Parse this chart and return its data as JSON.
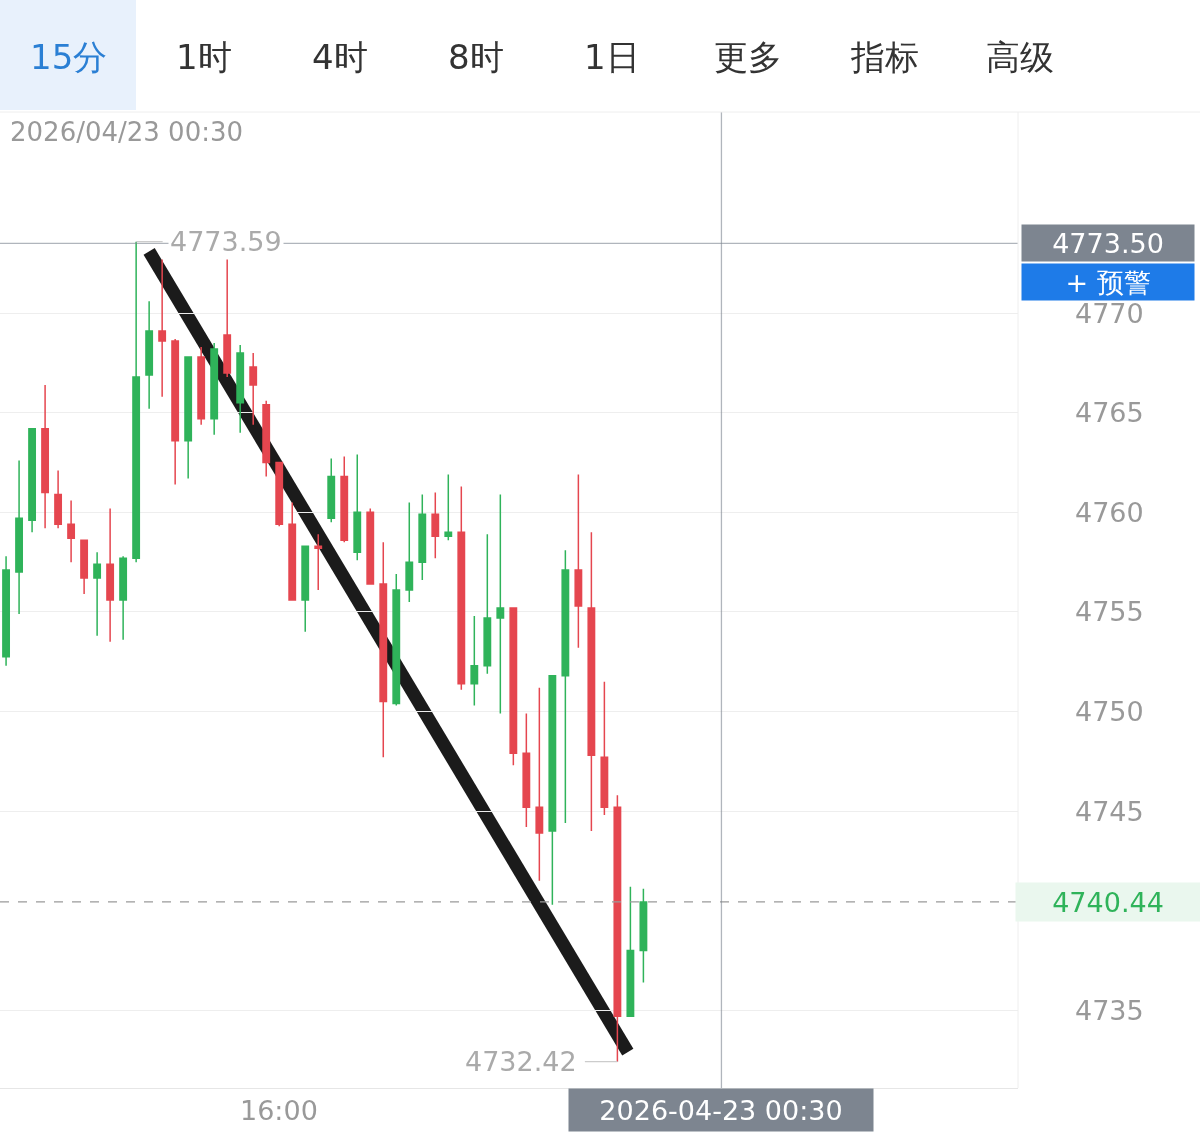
{
  "chart_data": {
    "type": "candlestick",
    "x": [
      "2026-04-22T10:45",
      "2026-04-22T11:00",
      "2026-04-22T11:15",
      "2026-04-22T11:30",
      "2026-04-22T11:45",
      "2026-04-22T12:00",
      "2026-04-22T12:15",
      "2026-04-22T12:30",
      "2026-04-22T12:45",
      "2026-04-22T13:00",
      "2026-04-22T13:15",
      "2026-04-22T13:30",
      "2026-04-22T13:45",
      "2026-04-22T14:00",
      "2026-04-22T14:15",
      "2026-04-22T14:30",
      "2026-04-22T14:45",
      "2026-04-22T15:00",
      "2026-04-22T15:15",
      "2026-04-22T15:30",
      "2026-04-22T15:45",
      "2026-04-22T16:00",
      "2026-04-22T16:15",
      "2026-04-22T16:30",
      "2026-04-22T16:45",
      "2026-04-22T17:00",
      "2026-04-22T17:15",
      "2026-04-22T17:30",
      "2026-04-22T17:45",
      "2026-04-22T18:00",
      "2026-04-22T18:15",
      "2026-04-22T18:30",
      "2026-04-22T18:45",
      "2026-04-22T19:00",
      "2026-04-22T19:15",
      "2026-04-22T19:30",
      "2026-04-22T19:45",
      "2026-04-22T20:00",
      "2026-04-22T20:15",
      "2026-04-22T20:30",
      "2026-04-22T20:45",
      "2026-04-22T21:00",
      "2026-04-22T21:15",
      "2026-04-22T21:30",
      "2026-04-22T21:45",
      "2026-04-22T22:00",
      "2026-04-22T22:15",
      "2026-04-22T22:30",
      "2026-04-22T22:45",
      "2026-04-22T23:00"
    ],
    "ohlc": [
      [
        4752.75,
        4757.8,
        4752.3,
        4757.1
      ],
      [
        4757.0,
        4762.6,
        4754.9,
        4759.7
      ],
      [
        4759.6,
        4764.2,
        4759.0,
        4764.2
      ],
      [
        4764.2,
        4766.4,
        4759.2,
        4761.0
      ],
      [
        4760.9,
        4762.1,
        4759.2,
        4759.4
      ],
      [
        4759.4,
        4760.6,
        4757.5,
        4758.7
      ],
      [
        4758.6,
        4758.6,
        4755.9,
        4756.7
      ],
      [
        4756.7,
        4758.0,
        4753.8,
        4757.4
      ],
      [
        4757.4,
        4760.2,
        4753.5,
        4755.6
      ],
      [
        4755.6,
        4757.8,
        4753.6,
        4757.7
      ],
      [
        4757.7,
        4773.59,
        4757.5,
        4766.8
      ],
      [
        4766.9,
        4770.6,
        4765.2,
        4769.1
      ],
      [
        4769.1,
        4772.7,
        4765.8,
        4768.6
      ],
      [
        4768.6,
        4768.7,
        4761.4,
        4763.6
      ],
      [
        4763.6,
        4767.8,
        4761.7,
        4767.8
      ],
      [
        4767.8,
        4768.3,
        4764.4,
        4764.7
      ],
      [
        4764.7,
        4768.5,
        4763.9,
        4768.2
      ],
      [
        4768.9,
        4772.7,
        4766.8,
        4767.0
      ],
      [
        4765.5,
        4768.4,
        4764.0,
        4768.0
      ],
      [
        4767.3,
        4768.0,
        4764.4,
        4766.4
      ],
      [
        4765.4,
        4765.6,
        4761.8,
        4762.5
      ],
      [
        4762.5,
        4762.5,
        4759.3,
        4759.4
      ],
      [
        4759.4,
        4760.5,
        4755.6,
        4755.6
      ],
      [
        4755.6,
        4758.3,
        4754.0,
        4758.3
      ],
      [
        4758.3,
        4758.9,
        4756.1,
        4758.2
      ],
      [
        4759.7,
        4762.7,
        4759.5,
        4761.8
      ],
      [
        4761.8,
        4762.8,
        4758.5,
        4758.6
      ],
      [
        4758.0,
        4762.9,
        4757.6,
        4760.0
      ],
      [
        4760.0,
        4760.2,
        4756.4,
        4756.4
      ],
      [
        4756.4,
        4758.5,
        4747.7,
        4750.5
      ],
      [
        4750.4,
        4756.9,
        4750.3,
        4756.1
      ],
      [
        4756.1,
        4760.5,
        4755.5,
        4757.5
      ],
      [
        4757.5,
        4760.9,
        4756.6,
        4759.9
      ],
      [
        4759.9,
        4761.0,
        4757.7,
        4758.8
      ],
      [
        4758.8,
        4761.9,
        4758.6,
        4759.0
      ],
      [
        4759.0,
        4761.3,
        4751.1,
        4751.4
      ],
      [
        4751.4,
        4754.8,
        4750.3,
        4752.3
      ],
      [
        4752.3,
        4758.9,
        4751.9,
        4754.7
      ],
      [
        4754.7,
        4760.9,
        4749.9,
        4755.2
      ],
      [
        4755.2,
        4755.2,
        4747.3,
        4747.9
      ],
      [
        4747.9,
        4749.9,
        4744.2,
        4745.2
      ],
      [
        4745.2,
        4751.2,
        4741.5,
        4743.9
      ],
      [
        4744.0,
        4751.8,
        4740.3,
        4751.8
      ],
      [
        4751.8,
        4758.1,
        4744.4,
        4757.1
      ],
      [
        4757.1,
        4761.9,
        4753.2,
        4755.3
      ],
      [
        4755.2,
        4759.0,
        4744.0,
        4747.8
      ],
      [
        4747.7,
        4751.5,
        4744.8,
        4745.2
      ],
      [
        4745.2,
        4745.8,
        4732.42,
        4734.7
      ],
      [
        4734.7,
        4741.2,
        4734.7,
        4738.0
      ],
      [
        4738.0,
        4741.1,
        4736.4,
        4740.44
      ]
    ],
    "colors": [
      "#2fb35a",
      "#2fb35a",
      "#2fb35a",
      "#e5464f",
      "#e5464f",
      "#e5464f",
      "#e5464f",
      "#2fb35a",
      "#e5464f",
      "#2fb35a",
      "#2fb35a",
      "#2fb35a",
      "#e5464f",
      "#e5464f",
      "#2fb35a",
      "#e5464f",
      "#2fb35a",
      "#e5464f",
      "#2fb35a",
      "#e5464f",
      "#e5464f",
      "#e5464f",
      "#e5464f",
      "#2fb35a",
      "#e5464f",
      "#2fb35a",
      "#e5464f",
      "#2fb35a",
      "#e5464f",
      "#e5464f",
      "#2fb35a",
      "#2fb35a",
      "#2fb35a",
      "#e5464f",
      "#2fb35a",
      "#e5464f",
      "#2fb35a",
      "#2fb35a",
      "#2fb35a",
      "#e5464f",
      "#e5464f",
      "#e5464f",
      "#2fb35a",
      "#2fb35a",
      "#e5464f",
      "#e5464f",
      "#e5464f",
      "#e5464f",
      "#2fb35a",
      "#2fb35a"
    ],
    "series": [
      {
        "type": "line",
        "x": [
          "2026-04-22T13:30",
          "2026-04-22T22:42"
        ],
        "values": [
          4773.1,
          4732.9
        ],
        "color": "#1b1b1b"
      }
    ],
    "xlim": [
      "2026-04-22T10:38",
      "2026-04-23T06:12"
    ],
    "xticks": [
      {
        "value": "2026-04-22T16:00",
        "label": "16:00"
      },
      {
        "value": "2026-04-23T00:30",
        "label": "2026-04-23 00:30"
      }
    ],
    "ylim": [
      4731.1,
      4780.1
    ],
    "yticks": [
      4735,
      4745,
      4750,
      4755,
      4760,
      4765,
      4770
    ],
    "grid": "y",
    "ref_lines": [
      {
        "axis": "y",
        "value": 4773.5,
        "label": "4773.50",
        "color": "#7d8590"
      },
      {
        "axis": "y",
        "value": 4740.44,
        "label": "4740.44",
        "color": "#9a9a9a",
        "line_style": "dashed"
      },
      {
        "axis": "x",
        "value": "2026-04-23T00:30",
        "color": "#7d8590"
      }
    ],
    "annotations": [
      "15分",
      "1时",
      "4时",
      "8时",
      "1日",
      "更多",
      "指标",
      "高级",
      "2026/04/23 00:30",
      "+ 预警",
      {
        "text": "4773.59",
        "x": "2026-04-22T13:15",
        "y": 4773.59
      },
      {
        "text": "4732.42",
        "x": "2026-04-22T22:30",
        "y": 4732.42
      }
    ]
  }
}
